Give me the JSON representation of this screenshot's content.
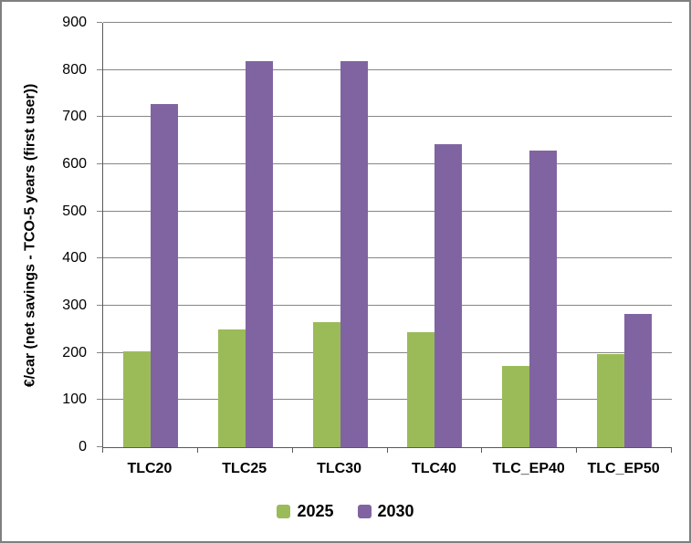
{
  "chart_data": {
    "type": "bar",
    "title": "",
    "xlabel": "",
    "ylabel": "€/car (net savings - TCO-5 years (first user))",
    "categories": [
      "TLC20",
      "TLC25",
      "TLC30",
      "TLC40",
      "TLC_EP40",
      "TLC_EP50"
    ],
    "series": [
      {
        "name": "2025",
        "color": "#9bbb59",
        "values": [
          203,
          250,
          266,
          243,
          173,
          198
        ]
      },
      {
        "name": "2030",
        "color": "#8064a2",
        "values": [
          727,
          818,
          818,
          642,
          630,
          283
        ]
      }
    ],
    "ylim": [
      0,
      900
    ],
    "ytick_step": 100,
    "ytick_labels": [
      "0",
      "100",
      "200",
      "300",
      "400",
      "500",
      "600",
      "700",
      "800",
      "900"
    ],
    "grid": true,
    "legend_position": "bottom"
  },
  "colors": {
    "bar_2025": "#9bbb59",
    "bar_2030": "#8064a2",
    "gridline": "#868686",
    "axis": "#595959",
    "text": "#000000",
    "frame_border": "#7f7f7f",
    "background": "#ffffff"
  }
}
